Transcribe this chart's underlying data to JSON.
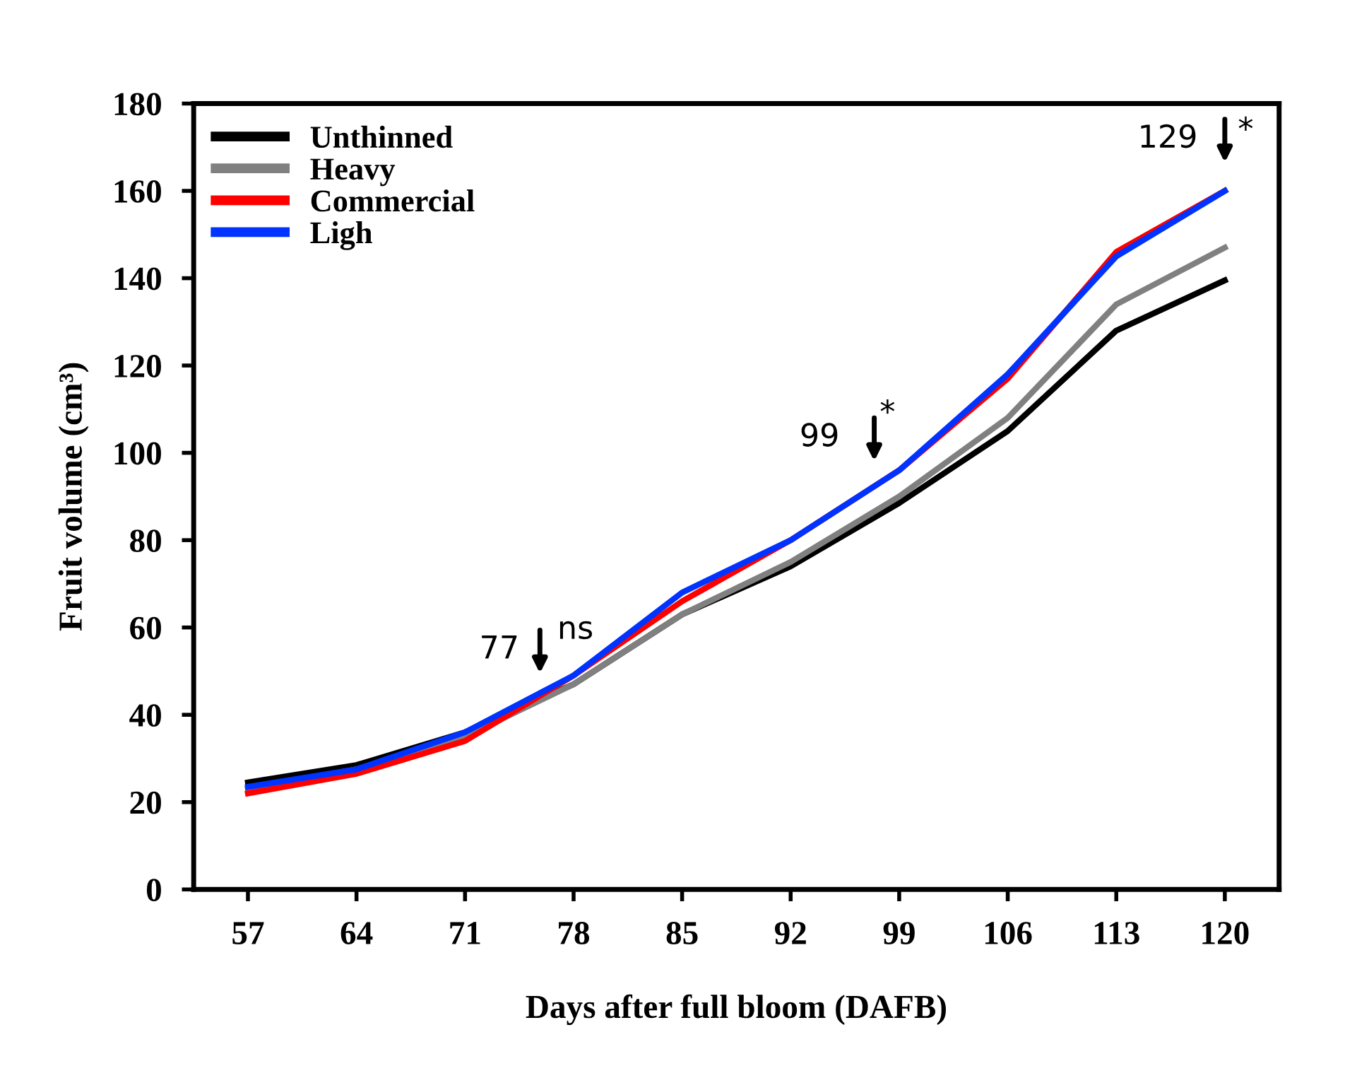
{
  "chart_data": {
    "type": "line",
    "xlabel": "Days after full bloom (DAFB)",
    "ylabel": "Fruit volume (cm³)",
    "categories": [
      "57",
      "64",
      "71",
      "78",
      "85",
      "92",
      "99",
      "106",
      "113",
      "120"
    ],
    "series": [
      {
        "name": "Unthinned",
        "color": "#000000",
        "values": [
          24.5,
          28.5,
          36,
          47,
          63,
          74,
          88.5,
          105,
          128,
          139.5
        ]
      },
      {
        "name": "Heavy",
        "color": "#808080",
        "values": [
          23,
          27.5,
          35,
          47,
          63,
          75,
          90,
          108,
          134,
          147
        ]
      },
      {
        "name": "Commercial",
        "color": "#ff0000",
        "values": [
          22,
          26.5,
          34,
          49,
          66,
          80,
          96,
          117,
          146,
          160
        ]
      },
      {
        "name": "Ligh",
        "color": "#0033ff",
        "values": [
          23.5,
          27.5,
          36,
          49,
          68,
          80,
          96,
          118,
          145,
          160
        ]
      }
    ],
    "ylim": [
      0,
      180
    ],
    "yticks": [
      0,
      20,
      40,
      60,
      80,
      100,
      120,
      140,
      160,
      180
    ],
    "grid": false,
    "legend": "top left",
    "marker": "none",
    "line_style": "solid",
    "annotations": [
      "77",
      "ns",
      "99",
      "*",
      "129",
      "*"
    ]
  }
}
